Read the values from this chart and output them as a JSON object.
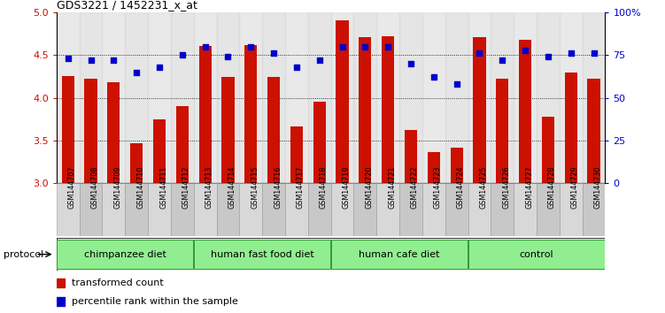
{
  "title": "GDS3221 / 1452231_x_at",
  "samples": [
    "GSM144707",
    "GSM144708",
    "GSM144709",
    "GSM144710",
    "GSM144711",
    "GSM144712",
    "GSM144713",
    "GSM144714",
    "GSM144715",
    "GSM144716",
    "GSM144717",
    "GSM144718",
    "GSM144719",
    "GSM144720",
    "GSM144721",
    "GSM144722",
    "GSM144723",
    "GSM144724",
    "GSM144725",
    "GSM144726",
    "GSM144727",
    "GSM144728",
    "GSM144729",
    "GSM144730"
  ],
  "bar_values": [
    4.26,
    4.22,
    4.18,
    3.47,
    3.75,
    3.9,
    4.61,
    4.24,
    4.62,
    4.24,
    3.66,
    3.95,
    4.91,
    4.71,
    4.72,
    3.62,
    3.36,
    3.42,
    4.71,
    4.22,
    4.68,
    3.78,
    4.3,
    4.22
  ],
  "dot_values": [
    73,
    72,
    72,
    65,
    68,
    75,
    80,
    74,
    80,
    76,
    68,
    72,
    80,
    80,
    80,
    70,
    62,
    58,
    76,
    72,
    78,
    74,
    76,
    76
  ],
  "groups": [
    {
      "label": "chimpanzee diet",
      "start": 0,
      "end": 6
    },
    {
      "label": "human fast food diet",
      "start": 6,
      "end": 12
    },
    {
      "label": "human cafe diet",
      "start": 12,
      "end": 18
    },
    {
      "label": "control",
      "start": 18,
      "end": 24
    }
  ],
  "bar_color": "#CC1100",
  "dot_color": "#0000CC",
  "ylim_left": [
    3.0,
    5.0
  ],
  "ylim_right": [
    0,
    100
  ],
  "yticks_left": [
    3.0,
    3.5,
    4.0,
    4.5,
    5.0
  ],
  "yticks_right": [
    0,
    25,
    50,
    75,
    100
  ],
  "ytick_labels_right": [
    "0",
    "25",
    "50",
    "75",
    "100%"
  ],
  "grid_values": [
    3.5,
    4.0,
    4.5
  ],
  "plot_bg": "#F0F0F0",
  "cell_bg_even": "#D8D8D8",
  "cell_bg_odd": "#C8C8C8",
  "group_fill": "#90EE90",
  "group_edge": "#339933",
  "protocol_label": "protocol"
}
